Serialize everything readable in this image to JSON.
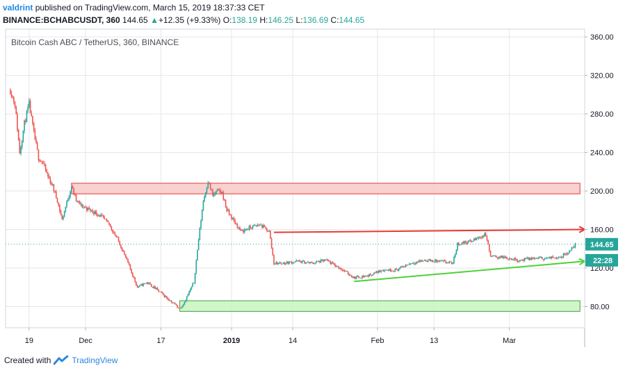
{
  "header": {
    "author": "valdrint",
    "published_text": "published on TradingView.com, March 15, 2019 18:37:33 CET",
    "symbol": "BINANCE:BCHABCUSDT, 360",
    "last": "144.65",
    "change_arrow": "▲",
    "change": "+12.35 (+9.33%)",
    "o_label": "O:",
    "o_value": "138.19",
    "h_label": "H:",
    "h_value": "146.25",
    "l_label": "L:",
    "l_value": "136.69",
    "c_label": "C:",
    "c_value": "144.65"
  },
  "footer": {
    "created_with": "Created with",
    "brand": "TradingView"
  },
  "colors": {
    "up": "#26a69a",
    "down": "#ef5350",
    "red_zone": "#f8c9c9",
    "green_zone": "#c8f5c0",
    "grid": "#e6e6e6"
  },
  "chart_data": {
    "type": "candlestick",
    "title": "Bitcoin Cash ABC / TetherUS, 360, BINANCE",
    "ylim": [
      58,
      368
    ],
    "y_ticks": [
      80,
      120,
      160,
      200,
      240,
      280,
      320,
      360
    ],
    "y_tick_labels": [
      "80.00",
      "120.00",
      "160.00",
      "200.00",
      "240.00",
      "280.00",
      "320.00",
      "360.00"
    ],
    "x_range": [
      "2018-11-14",
      "2019-03-17"
    ],
    "x_ticks": [
      {
        "date": "2018-11-19",
        "label": "19",
        "bold": false
      },
      {
        "date": "2018-12-01",
        "label": "Dec",
        "bold": false
      },
      {
        "date": "2018-12-17",
        "label": "17",
        "bold": false
      },
      {
        "date": "2019-01-01",
        "label": "2019",
        "bold": true
      },
      {
        "date": "2019-01-14",
        "label": "14",
        "bold": false
      },
      {
        "date": "2019-02-01",
        "label": "Feb",
        "bold": false
      },
      {
        "date": "2019-02-13",
        "label": "13",
        "bold": false
      },
      {
        "date": "2019-03-01",
        "label": "Mar",
        "bold": false
      }
    ],
    "price_path": [
      [
        "2018-11-15",
        305
      ],
      [
        "2018-11-16",
        290
      ],
      [
        "2018-11-17",
        240
      ],
      [
        "2018-11-18",
        270
      ],
      [
        "2018-11-19",
        290
      ],
      [
        "2018-11-20",
        260
      ],
      [
        "2018-11-21",
        235
      ],
      [
        "2018-11-22",
        228
      ],
      [
        "2018-11-23",
        215
      ],
      [
        "2018-11-24",
        205
      ],
      [
        "2018-11-25",
        190
      ],
      [
        "2018-11-26",
        170
      ],
      [
        "2018-11-27",
        188
      ],
      [
        "2018-11-28",
        205
      ],
      [
        "2018-11-29",
        190
      ],
      [
        "2018-11-30",
        185
      ],
      [
        "2018-12-02",
        180
      ],
      [
        "2018-12-04",
        175
      ],
      [
        "2018-12-06",
        165
      ],
      [
        "2018-12-08",
        148
      ],
      [
        "2018-12-10",
        125
      ],
      [
        "2018-12-12",
        100
      ],
      [
        "2018-12-14",
        105
      ],
      [
        "2018-12-16",
        98
      ],
      [
        "2018-12-18",
        90
      ],
      [
        "2018-12-20",
        82
      ],
      [
        "2018-12-21",
        78
      ],
      [
        "2018-12-22",
        85
      ],
      [
        "2018-12-24",
        105
      ],
      [
        "2018-12-25",
        150
      ],
      [
        "2018-12-26",
        190
      ],
      [
        "2018-12-27",
        210
      ],
      [
        "2018-12-28",
        195
      ],
      [
        "2018-12-29",
        200
      ],
      [
        "2018-12-30",
        198
      ],
      [
        "2018-12-31",
        180
      ],
      [
        "2019-01-02",
        165
      ],
      [
        "2019-01-03",
        158
      ],
      [
        "2019-01-05",
        162
      ],
      [
        "2019-01-07",
        165
      ],
      [
        "2019-01-09",
        158
      ],
      [
        "2019-01-10",
        125
      ],
      [
        "2019-01-12",
        125
      ],
      [
        "2019-01-15",
        127
      ],
      [
        "2019-01-18",
        125
      ],
      [
        "2019-01-21",
        128
      ],
      [
        "2019-01-24",
        120
      ],
      [
        "2019-01-27",
        110
      ],
      [
        "2019-01-30",
        112
      ],
      [
        "2019-02-02",
        118
      ],
      [
        "2019-02-05",
        118
      ],
      [
        "2019-02-08",
        125
      ],
      [
        "2019-02-11",
        128
      ],
      [
        "2019-02-14",
        127
      ],
      [
        "2019-02-17",
        125
      ],
      [
        "2019-02-18",
        145
      ],
      [
        "2019-02-21",
        148
      ],
      [
        "2019-02-24",
        155
      ],
      [
        "2019-02-25",
        132
      ],
      [
        "2019-02-28",
        131
      ],
      [
        "2019-03-03",
        128
      ],
      [
        "2019-03-06",
        130
      ],
      [
        "2019-03-09",
        130
      ],
      [
        "2019-03-12",
        132
      ],
      [
        "2019-03-14",
        138
      ],
      [
        "2019-03-15",
        144.65
      ]
    ],
    "zones": [
      {
        "name": "resistance-zone",
        "from": "2018-11-28",
        "to": "2019-03-16",
        "low": 197,
        "high": 208,
        "color": "#f8c9c9",
        "border": "#e53935"
      },
      {
        "name": "support-zone",
        "from": "2018-12-21",
        "to": "2019-03-16",
        "low": 75,
        "high": 86,
        "color": "#c8f5c0",
        "border": "#43a047"
      }
    ],
    "lines": [
      {
        "name": "resistance-arrow",
        "from": [
          "2019-01-10",
          157
        ],
        "to": [
          "2019-03-17",
          160
        ],
        "color": "#e53935"
      },
      {
        "name": "support-arrow",
        "from": [
          "2019-01-27",
          106
        ],
        "to": [
          "2019-03-17",
          127
        ],
        "color": "#4cd137"
      }
    ],
    "last_price": {
      "value": "144.65",
      "y": 144.65,
      "color": "#26a69a"
    },
    "countdown": {
      "label": "22:28",
      "y": 128,
      "color": "#26a69a"
    }
  }
}
